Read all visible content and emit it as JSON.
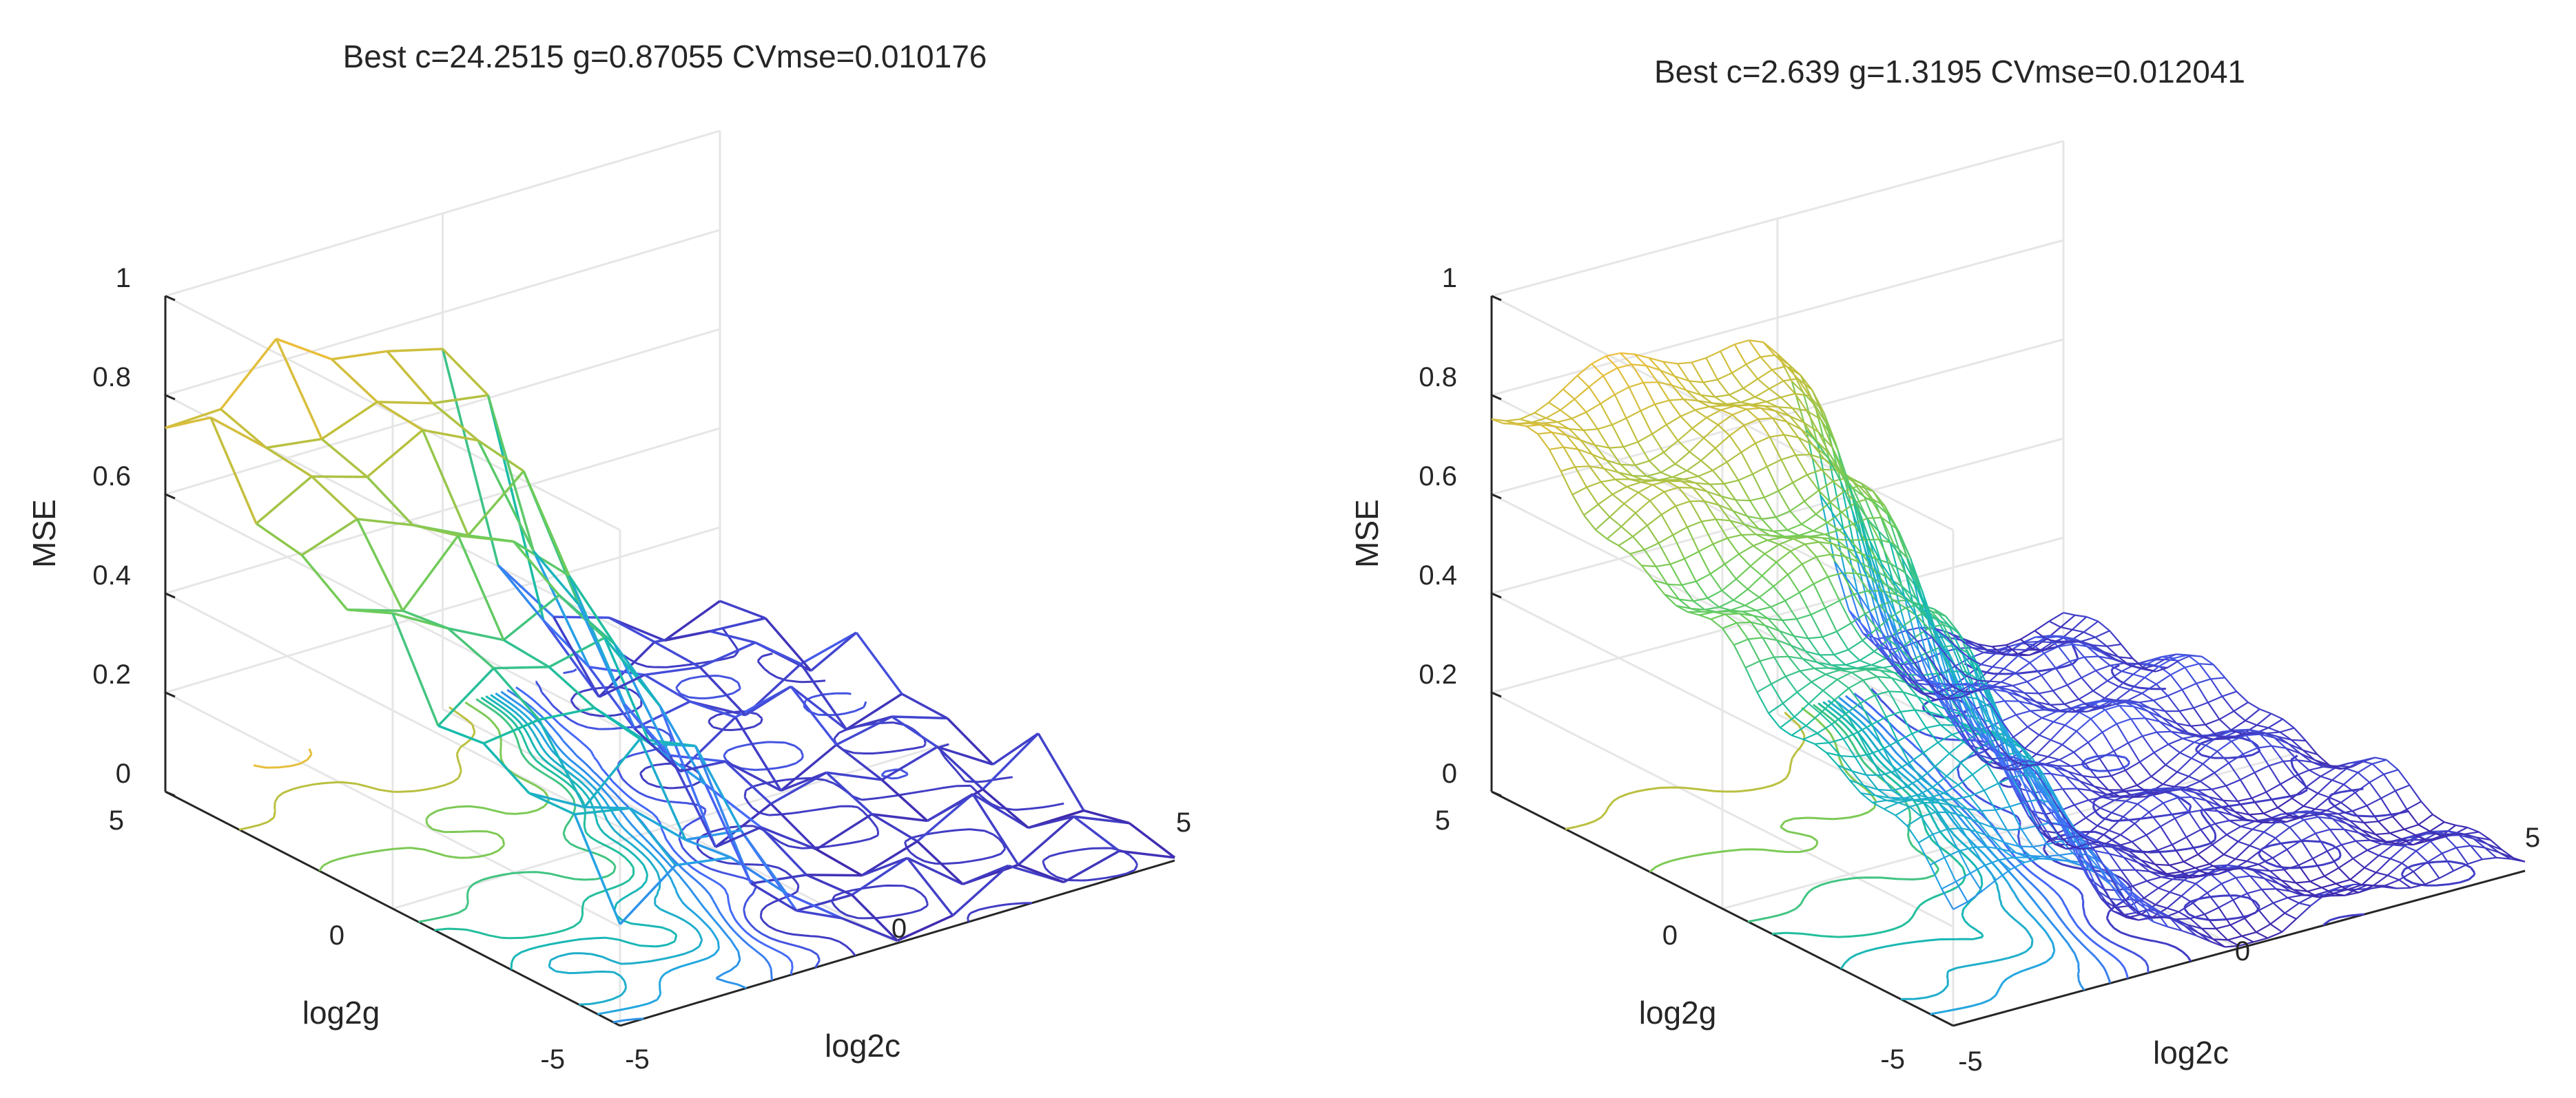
{
  "chart_data": [
    {
      "type": "surface",
      "title": "Best c=24.2515 g=0.87055 CVmse=0.010176",
      "xlabel": "log2c",
      "ylabel": "log2g",
      "zlabel": "MSE",
      "xlim": [
        -5,
        5
      ],
      "ylim": [
        -5,
        5
      ],
      "zlim": [
        0,
        1
      ],
      "x_ticks": [
        "-5",
        "0",
        "5"
      ],
      "y_ticks": [
        "-5",
        "0",
        "5"
      ],
      "z_ticks": [
        "0",
        "0.2",
        "0.4",
        "0.6",
        "0.8",
        "1"
      ],
      "grid_step": 1,
      "grid": true,
      "colormap": [
        "#3e26a8",
        "#4767f8",
        "#26a3e5",
        "#16bca9",
        "#6ccc5b",
        "#c3bf3d",
        "#fdbd3c",
        "#f9fb15"
      ],
      "contour_levels": [
        0.05,
        0.1,
        0.15,
        0.2,
        0.25,
        0.3,
        0.35,
        0.4,
        0.45,
        0.5,
        0.6,
        0.7,
        0.8,
        0.9
      ]
    },
    {
      "type": "surface",
      "title": "Best c=2.639 g=1.3195 CVmse=0.012041",
      "xlabel": "log2c",
      "ylabel": "log2g",
      "zlabel": "MSE",
      "xlim": [
        -5,
        5
      ],
      "ylim": [
        -5,
        5
      ],
      "zlim": [
        0,
        1
      ],
      "x_ticks": [
        "-5",
        "0",
        "5"
      ],
      "y_ticks": [
        "-5",
        "0",
        "5"
      ],
      "z_ticks": [
        "0",
        "0.2",
        "0.4",
        "0.6",
        "0.8",
        "1"
      ],
      "grid_step": 0.25,
      "grid": true,
      "colormap": [
        "#3e26a8",
        "#4767f8",
        "#26a3e5",
        "#16bca9",
        "#6ccc5b",
        "#c3bf3d",
        "#fdbd3c",
        "#f9fb15"
      ],
      "contour_levels": [
        0.05,
        0.1,
        0.15,
        0.2,
        0.25,
        0.3,
        0.35,
        0.4,
        0.45,
        0.5,
        0.6,
        0.7,
        0.8,
        0.9
      ]
    }
  ]
}
